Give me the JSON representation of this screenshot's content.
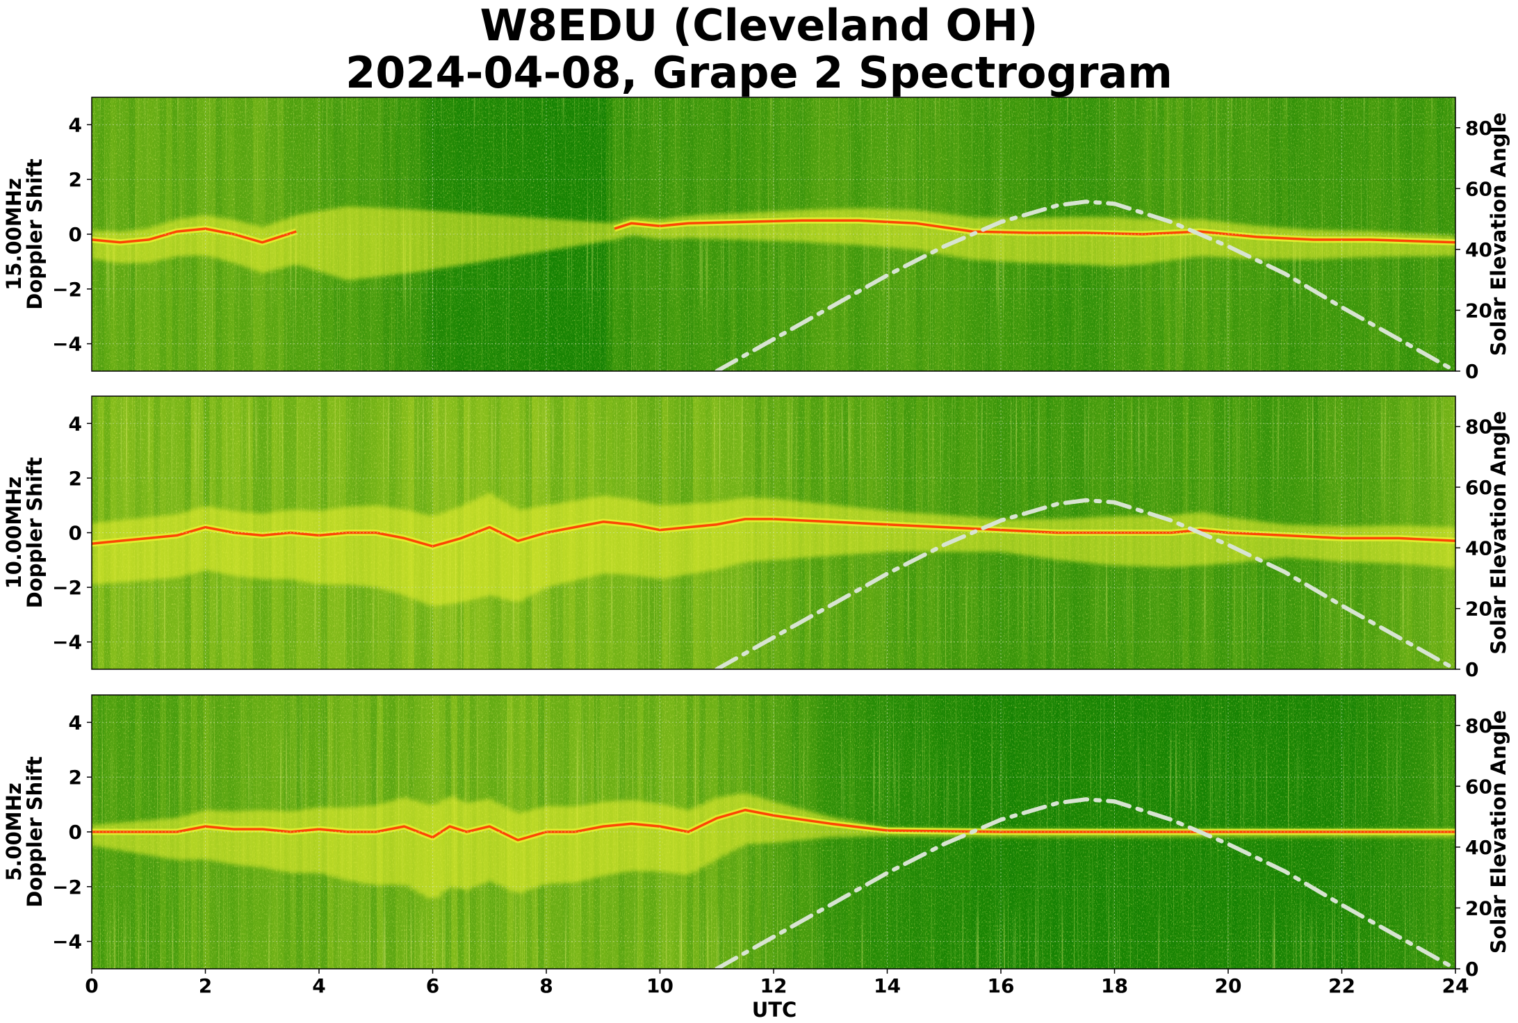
{
  "title_lines": [
    "W8EDU (Cleveland OH)",
    "2024-04-08, Grape 2 Spectrogram"
  ],
  "colors": {
    "background_green": "#0a7d00",
    "noise_yellow": "#e6ee30",
    "trace_red": "#ff3300",
    "solar_curve": "#d8e4d2"
  },
  "chart_data": {
    "type": "heatmap",
    "xlabel": "UTC",
    "xlim": [
      0,
      24
    ],
    "xticks": [
      0,
      2,
      4,
      6,
      8,
      10,
      12,
      14,
      16,
      18,
      20,
      22,
      24
    ],
    "ylim": [
      -5,
      5
    ],
    "yticks": [
      -4,
      -2,
      0,
      2,
      4
    ],
    "ylabel_right": "Solar Elevation Angle",
    "y2lim": [
      0,
      90
    ],
    "y2ticks": [
      0,
      20,
      40,
      60,
      80
    ],
    "grid": true,
    "solar_elevation": {
      "line_style": "dash-dot",
      "x": [
        11.0,
        12.0,
        13.0,
        14.0,
        15.0,
        16.0,
        17.0,
        17.5,
        18.0,
        19.0,
        20.0,
        21.0,
        22.0,
        23.0,
        24.0
      ],
      "y": [
        0,
        10.5,
        21,
        31.5,
        41,
        49,
        54.5,
        55.7,
        55,
        49,
        41,
        32,
        21,
        10.5,
        0
      ]
    },
    "panels": [
      {
        "ylabel_lines": [
          "15.00MHz",
          "Doppler Shift"
        ],
        "activity": [
          [
            0,
            0.55
          ],
          [
            1,
            0.6
          ],
          [
            2,
            0.6
          ],
          [
            3,
            0.6
          ],
          [
            3.6,
            0.55
          ],
          [
            4,
            0.45
          ],
          [
            5,
            0.4
          ],
          [
            5.8,
            0.3
          ],
          [
            6,
            0.15
          ],
          [
            7,
            0.15
          ],
          [
            8,
            0.1
          ],
          [
            9,
            0.1
          ],
          [
            9.2,
            0.3
          ],
          [
            10,
            0.35
          ],
          [
            11,
            0.35
          ],
          [
            12,
            0.4
          ],
          [
            13,
            0.45
          ],
          [
            14,
            0.45
          ],
          [
            15,
            0.45
          ],
          [
            16,
            0.35
          ],
          [
            17,
            0.3
          ],
          [
            18,
            0.35
          ],
          [
            19,
            0.45
          ],
          [
            20,
            0.4
          ],
          [
            21,
            0.35
          ],
          [
            22,
            0.35
          ],
          [
            23,
            0.35
          ],
          [
            24,
            0.35
          ]
        ],
        "trace": {
          "x": [
            0,
            0.5,
            1.0,
            1.5,
            2.0,
            2.5,
            3.0,
            3.3,
            3.6,
            9.2,
            9.5,
            10.0,
            10.5,
            12.5,
            13.5,
            14.5,
            15.5,
            16.5,
            17.5,
            18.5,
            19.5,
            20.5,
            21.5,
            22.5,
            24.0
          ],
          "y": [
            -0.2,
            -0.3,
            -0.2,
            0.1,
            0.2,
            0.0,
            -0.3,
            -0.1,
            0.1,
            0.2,
            0.4,
            0.3,
            0.4,
            0.5,
            0.5,
            0.4,
            0.1,
            0.05,
            0.05,
            0.0,
            0.1,
            -0.1,
            -0.2,
            -0.2,
            -0.3
          ],
          "breaks": [
            3.6
          ]
        },
        "spread": [
          [
            0,
            0.7
          ],
          [
            3.6,
            1.2
          ],
          [
            4.5,
            1.8
          ],
          [
            5.8,
            1.5
          ],
          [
            9.2,
            0.4
          ],
          [
            11,
            0.6
          ],
          [
            13.5,
            0.9
          ],
          [
            15,
            1.0
          ],
          [
            18,
            1.2
          ],
          [
            19.5,
            0.9
          ],
          [
            24,
            0.5
          ]
        ]
      },
      {
        "ylabel_lines": [
          "10.00MHz",
          "Doppler Shift"
        ],
        "activity": [
          [
            0,
            0.75
          ],
          [
            1,
            0.75
          ],
          [
            2,
            0.8
          ],
          [
            3,
            0.75
          ],
          [
            4,
            0.75
          ],
          [
            5,
            0.8
          ],
          [
            6,
            0.85
          ],
          [
            7,
            0.85
          ],
          [
            8,
            0.8
          ],
          [
            9,
            0.75
          ],
          [
            10,
            0.75
          ],
          [
            11,
            0.7
          ],
          [
            12,
            0.6
          ],
          [
            13,
            0.55
          ],
          [
            14,
            0.5
          ],
          [
            15,
            0.45
          ],
          [
            16,
            0.4
          ],
          [
            17,
            0.35
          ],
          [
            18,
            0.4
          ],
          [
            19,
            0.45
          ],
          [
            20,
            0.4
          ],
          [
            21,
            0.35
          ],
          [
            22,
            0.45
          ],
          [
            23,
            0.55
          ],
          [
            24,
            0.65
          ]
        ],
        "trace": {
          "x": [
            0,
            0.5,
            1.0,
            1.5,
            2.0,
            2.5,
            3.0,
            3.5,
            4.0,
            4.5,
            5.0,
            5.5,
            6.0,
            6.5,
            7.0,
            7.5,
            8.0,
            8.5,
            9.0,
            9.5,
            10.0,
            10.5,
            11.0,
            11.5,
            12.0,
            13.0,
            14.0,
            15.0,
            16.0,
            17.0,
            18.0,
            19.0,
            19.5,
            20.0,
            21.0,
            22.0,
            23.0,
            24.0
          ],
          "y": [
            -0.4,
            -0.3,
            -0.2,
            -0.1,
            0.2,
            0.0,
            -0.1,
            0.0,
            -0.1,
            0.0,
            0.0,
            -0.2,
            -0.5,
            -0.2,
            0.2,
            -0.3,
            0.0,
            0.2,
            0.4,
            0.3,
            0.1,
            0.2,
            0.3,
            0.5,
            0.5,
            0.4,
            0.3,
            0.2,
            0.1,
            0.0,
            0.0,
            0.0,
            0.1,
            0.0,
            -0.1,
            -0.2,
            -0.2,
            -0.3
          ],
          "breaks": []
        },
        "spread": [
          [
            0,
            1.5
          ],
          [
            3,
            1.6
          ],
          [
            6,
            2.2
          ],
          [
            7,
            2.5
          ],
          [
            8,
            2.0
          ],
          [
            10,
            1.8
          ],
          [
            12,
            1.5
          ],
          [
            14,
            1.0
          ],
          [
            16,
            0.8
          ],
          [
            18,
            1.2
          ],
          [
            19.5,
            1.3
          ],
          [
            21,
            0.8
          ],
          [
            24,
            1.0
          ]
        ]
      },
      {
        "ylabel_lines": [
          "5.00MHz",
          "Doppler Shift"
        ],
        "activity": [
          [
            0,
            0.45
          ],
          [
            1,
            0.5
          ],
          [
            2,
            0.6
          ],
          [
            3,
            0.6
          ],
          [
            4,
            0.65
          ],
          [
            5,
            0.7
          ],
          [
            6,
            0.75
          ],
          [
            7,
            0.75
          ],
          [
            8,
            0.7
          ],
          [
            9,
            0.7
          ],
          [
            10,
            0.7
          ],
          [
            11,
            0.65
          ],
          [
            12,
            0.45
          ],
          [
            13,
            0.3
          ],
          [
            14,
            0.2
          ],
          [
            15,
            0.15
          ],
          [
            16,
            0.1
          ],
          [
            18,
            0.1
          ],
          [
            20,
            0.1
          ],
          [
            22,
            0.12
          ],
          [
            23,
            0.2
          ],
          [
            24,
            0.35
          ]
        ],
        "trace": {
          "x": [
            0,
            1.0,
            1.5,
            2.0,
            2.5,
            3.0,
            3.5,
            4.0,
            4.5,
            5.0,
            5.5,
            6.0,
            6.3,
            6.6,
            7.0,
            7.5,
            8.0,
            8.5,
            9.0,
            9.5,
            10.0,
            10.5,
            11.0,
            11.5,
            12.0,
            13.0,
            14.0,
            16.0,
            18.0,
            20.0,
            22.0,
            24.0
          ],
          "y": [
            0.0,
            0.0,
            0.0,
            0.2,
            0.1,
            0.1,
            0.0,
            0.1,
            0.0,
            0.0,
            0.2,
            -0.2,
            0.2,
            0.0,
            0.2,
            -0.3,
            0.0,
            0.0,
            0.2,
            0.3,
            0.2,
            0.0,
            0.5,
            0.8,
            0.6,
            0.3,
            0.05,
            0.0,
            0.0,
            0.0,
            0.0,
            0.0
          ],
          "breaks": []
        },
        "spread": [
          [
            0,
            0.5
          ],
          [
            2,
            1.2
          ],
          [
            4,
            1.6
          ],
          [
            6,
            2.3
          ],
          [
            7,
            2.0
          ],
          [
            9,
            1.8
          ],
          [
            11,
            1.5
          ],
          [
            12,
            1.0
          ],
          [
            13,
            0.5
          ],
          [
            14,
            0.2
          ],
          [
            24,
            0.2
          ]
        ]
      }
    ]
  }
}
